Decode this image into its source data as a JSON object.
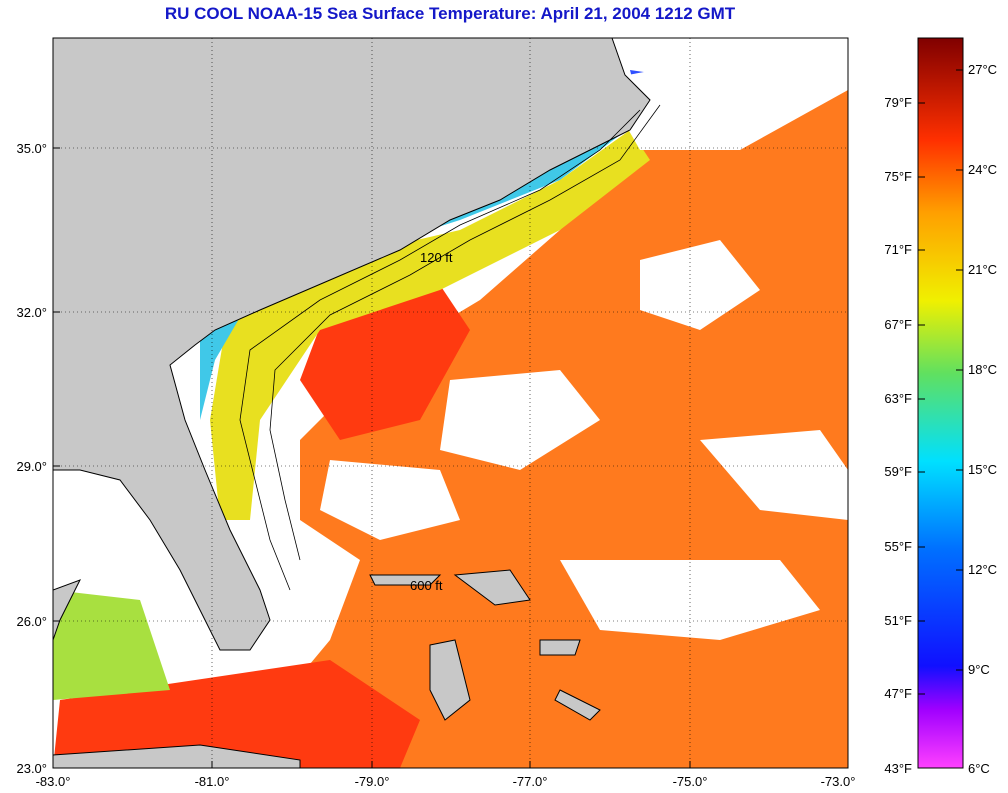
{
  "title": "RU COOL  NOAA-15  Sea Surface Temperature:  April 21, 2004 1212 GMT",
  "map": {
    "lon_range": [
      -83.0,
      -73.0
    ],
    "lat_range": [
      23.0,
      37.0
    ],
    "lon_ticks": [
      "-83.0°",
      "-81.0°",
      "-79.0°",
      "-77.0°",
      "-75.0°",
      "-73.0°"
    ],
    "lat_ticks": [
      "35.0°",
      "32.0°",
      "29.0°",
      "26.0°",
      "23.0°"
    ],
    "contour_labels": [
      "120 ft",
      "600 ft"
    ],
    "land_color": "#c8c8c8",
    "cloud_color": "#ffffff",
    "grid": "dotted"
  },
  "colorbar": {
    "fahrenheit_labels": [
      "79°F",
      "75°F",
      "71°F",
      "67°F",
      "63°F",
      "59°F",
      "55°F",
      "51°F",
      "47°F",
      "43°F"
    ],
    "celsius_labels": [
      "27°C",
      "24°C",
      "21°C",
      "18°C",
      "15°C",
      "12°C",
      "9°C",
      "6°C"
    ],
    "celsius_range": [
      6,
      28
    ]
  }
}
